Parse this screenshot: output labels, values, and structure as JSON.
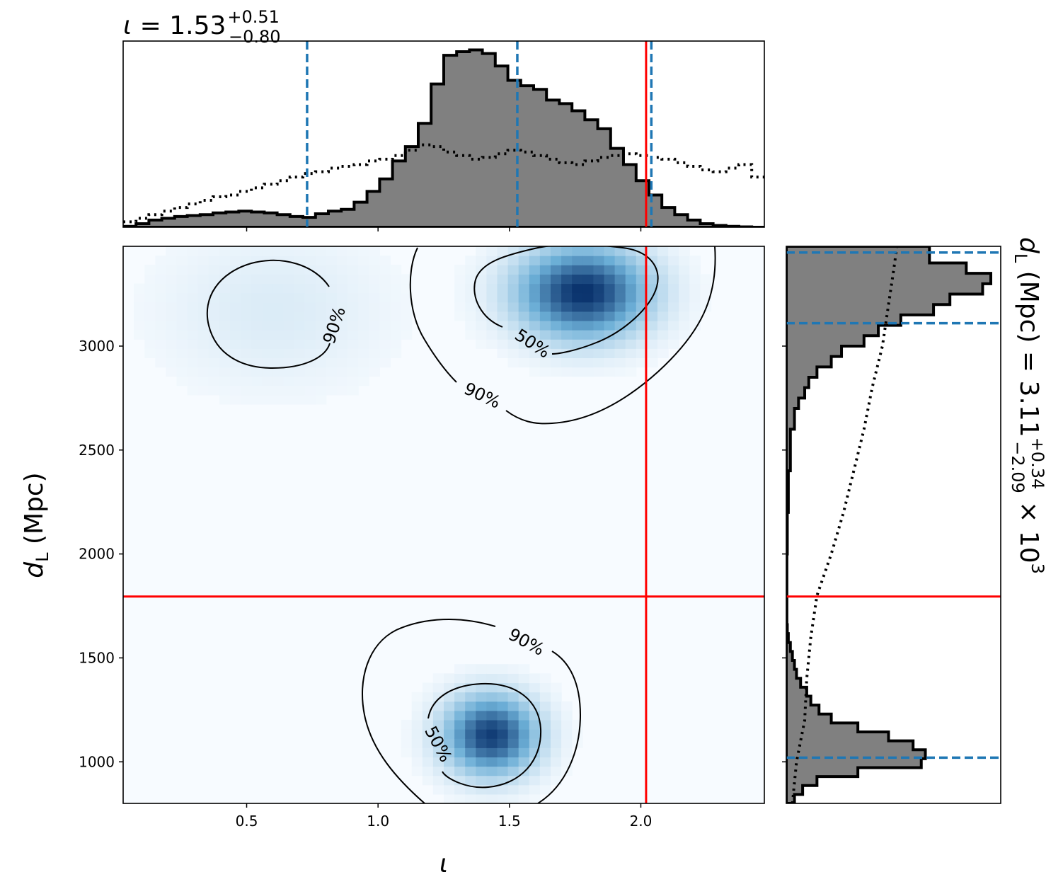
{
  "chart_data": [
    {
      "panel": "marginal-top",
      "type": "histogram",
      "title": {
        "symbol": "ι",
        "median": "1.53",
        "plus": "+0.51",
        "minus": "−0.80"
      },
      "xlim": [
        0.03,
        2.47
      ],
      "x_bins_edges": [
        0.03,
        0.079,
        0.128,
        0.177,
        0.226,
        0.274,
        0.323,
        0.372,
        0.421,
        0.47,
        0.518,
        0.567,
        0.616,
        0.665,
        0.714,
        0.762,
        0.811,
        0.86,
        0.909,
        0.958,
        1.006,
        1.055,
        1.104,
        1.153,
        1.202,
        1.25,
        1.299,
        1.348,
        1.397,
        1.446,
        1.494,
        1.543,
        1.592,
        1.641,
        1.69,
        1.738,
        1.787,
        1.836,
        1.885,
        1.934,
        1.982,
        2.031,
        2.08,
        2.129,
        2.178,
        2.226,
        2.275,
        2.324,
        2.373,
        2.422,
        2.47
      ],
      "series": [
        {
          "name": "posterior",
          "style": "filled-step",
          "values": [
            0.005,
            0.02,
            0.04,
            0.05,
            0.06,
            0.065,
            0.07,
            0.08,
            0.085,
            0.09,
            0.085,
            0.08,
            0.07,
            0.06,
            0.055,
            0.075,
            0.09,
            0.1,
            0.14,
            0.2,
            0.27,
            0.37,
            0.45,
            0.58,
            0.8,
            0.96,
            0.98,
            0.99,
            0.97,
            0.9,
            0.82,
            0.79,
            0.77,
            0.71,
            0.69,
            0.65,
            0.6,
            0.55,
            0.44,
            0.35,
            0.26,
            0.18,
            0.11,
            0.07,
            0.04,
            0.02,
            0.01,
            0.005,
            0.002,
            0.0
          ]
        },
        {
          "name": "prior",
          "style": "dotted-step",
          "values": [
            0.03,
            0.05,
            0.07,
            0.09,
            0.11,
            0.13,
            0.15,
            0.17,
            0.18,
            0.2,
            0.22,
            0.24,
            0.26,
            0.28,
            0.3,
            0.31,
            0.33,
            0.34,
            0.35,
            0.37,
            0.38,
            0.4,
            0.43,
            0.46,
            0.45,
            0.42,
            0.4,
            0.38,
            0.39,
            0.41,
            0.43,
            0.42,
            0.4,
            0.38,
            0.36,
            0.35,
            0.37,
            0.39,
            0.4,
            0.41,
            0.4,
            0.39,
            0.38,
            0.36,
            0.34,
            0.32,
            0.31,
            0.33,
            0.35,
            0.28
          ]
        }
      ],
      "quantile_lines": [
        0.73,
        1.53,
        2.04
      ],
      "truth": 2.02
    },
    {
      "panel": "joint",
      "type": "heatmap",
      "xlabel": "ι",
      "ylabel": "dL (Mpc)",
      "xlim": [
        0.03,
        2.47
      ],
      "ylim": [
        800,
        3480
      ],
      "xticks": [
        "0.5",
        "1.0",
        "1.5",
        "2.0"
      ],
      "xtick_values": [
        0.5,
        1.0,
        1.5,
        2.0
      ],
      "yticks": [
        "1000",
        "1500",
        "2000",
        "2500",
        "3000"
      ],
      "ytick_values": [
        1000,
        1500,
        2000,
        2500,
        3000
      ],
      "colormap": [
        "#f7fbff",
        "#08306b"
      ],
      "density_peaks": [
        {
          "x": 1.78,
          "y": 3260,
          "relative_height": 1.0
        },
        {
          "x": 1.43,
          "y": 1130,
          "relative_height": 0.95
        },
        {
          "x": 0.6,
          "y": 3170,
          "relative_height": 0.1
        }
      ],
      "contour_labels": [
        "90%",
        "50%",
        "90%",
        "90%",
        "50%"
      ],
      "truth": {
        "x": 2.02,
        "y": 1795
      }
    },
    {
      "panel": "marginal-right",
      "type": "histogram",
      "title": {
        "symbol": "dL",
        "unit": "(Mpc)",
        "median": "3.11",
        "plus": "+0.34",
        "minus": "−2.09",
        "scale": "× 10",
        "exponent": "3"
      },
      "ylim": [
        800,
        3480
      ],
      "y_bins_edges": [
        800,
        843,
        886,
        929,
        972,
        1015,
        1058,
        1101,
        1144,
        1187,
        1230,
        1273,
        1316,
        1359,
        1402,
        1445,
        1488,
        1531,
        1574,
        1617,
        1660,
        1800,
        2000,
        2200,
        2400,
        2600,
        2700,
        2750,
        2800,
        2850,
        2900,
        2950,
        3000,
        3050,
        3100,
        3150,
        3200,
        3250,
        3300,
        3350,
        3400,
        3480
      ],
      "series": [
        {
          "name": "posterior",
          "style": "filled-step",
          "values": [
            0.04,
            0.08,
            0.15,
            0.35,
            0.66,
            0.68,
            0.62,
            0.5,
            0.35,
            0.22,
            0.16,
            0.12,
            0.1,
            0.07,
            0.05,
            0.04,
            0.03,
            0.02,
            0.01,
            0.005,
            0.003,
            0.003,
            0.005,
            0.01,
            0.02,
            0.04,
            0.06,
            0.09,
            0.11,
            0.15,
            0.22,
            0.27,
            0.38,
            0.45,
            0.56,
            0.72,
            0.8,
            0.96,
            1.0,
            0.88,
            0.7
          ]
        },
        {
          "name": "prior",
          "style": "dotted-line",
          "points": [
            [
              800,
              0.03
            ],
            [
              1000,
              0.05
            ],
            [
              1200,
              0.09
            ],
            [
              1400,
              0.1
            ],
            [
              1600,
              0.12
            ],
            [
              1800,
              0.15
            ],
            [
              2000,
              0.22
            ],
            [
              2200,
              0.28
            ],
            [
              2400,
              0.33
            ],
            [
              2600,
              0.38
            ],
            [
              2800,
              0.42
            ],
            [
              3000,
              0.47
            ],
            [
              3200,
              0.5
            ],
            [
              3400,
              0.53
            ],
            [
              3480,
              0.54
            ]
          ]
        }
      ],
      "quantile_lines": [
        1020,
        3110,
        3450
      ],
      "truth": 1795
    }
  ]
}
